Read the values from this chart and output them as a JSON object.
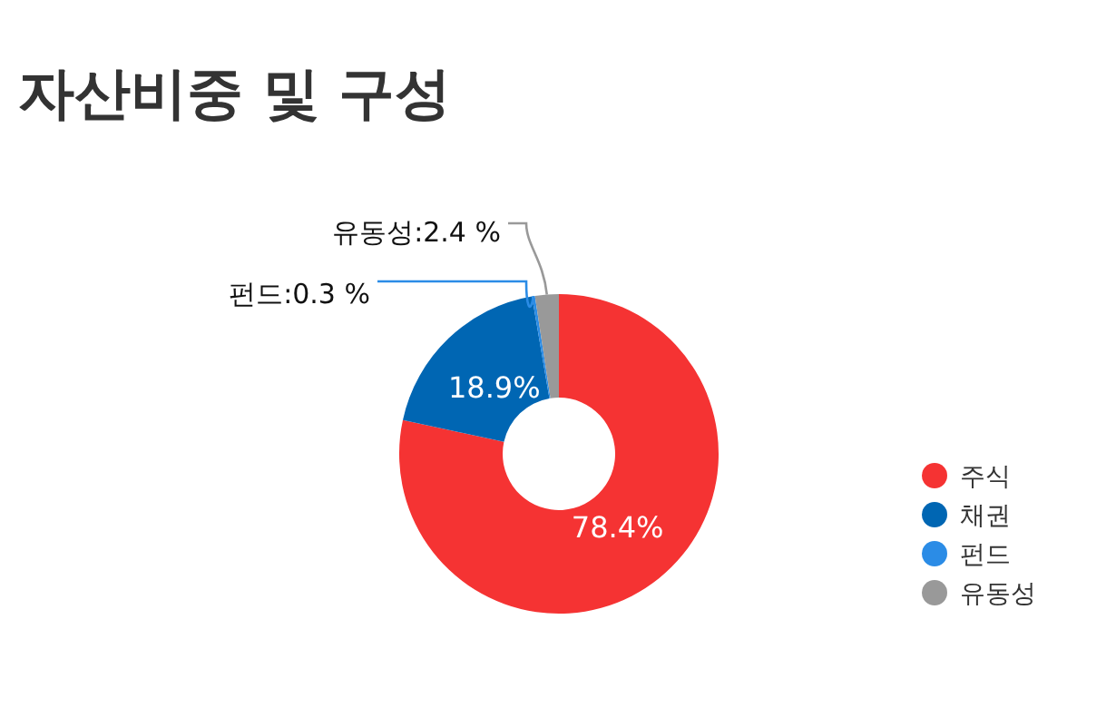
{
  "chart_data": {
    "type": "donut",
    "title": "자산비중 및 구성",
    "categories": [
      "주식",
      "채권",
      "펀드",
      "유동성"
    ],
    "values": [
      78.4,
      18.9,
      0.3,
      2.4
    ],
    "colors": [
      "#f53333",
      "#0066b3",
      "#2b8ce6",
      "#999999"
    ],
    "value_labels": [
      "78.4%",
      "18.9%",
      "펀드:0.3 %",
      "유동성:2.4 %"
    ],
    "legend": "bottom right"
  }
}
